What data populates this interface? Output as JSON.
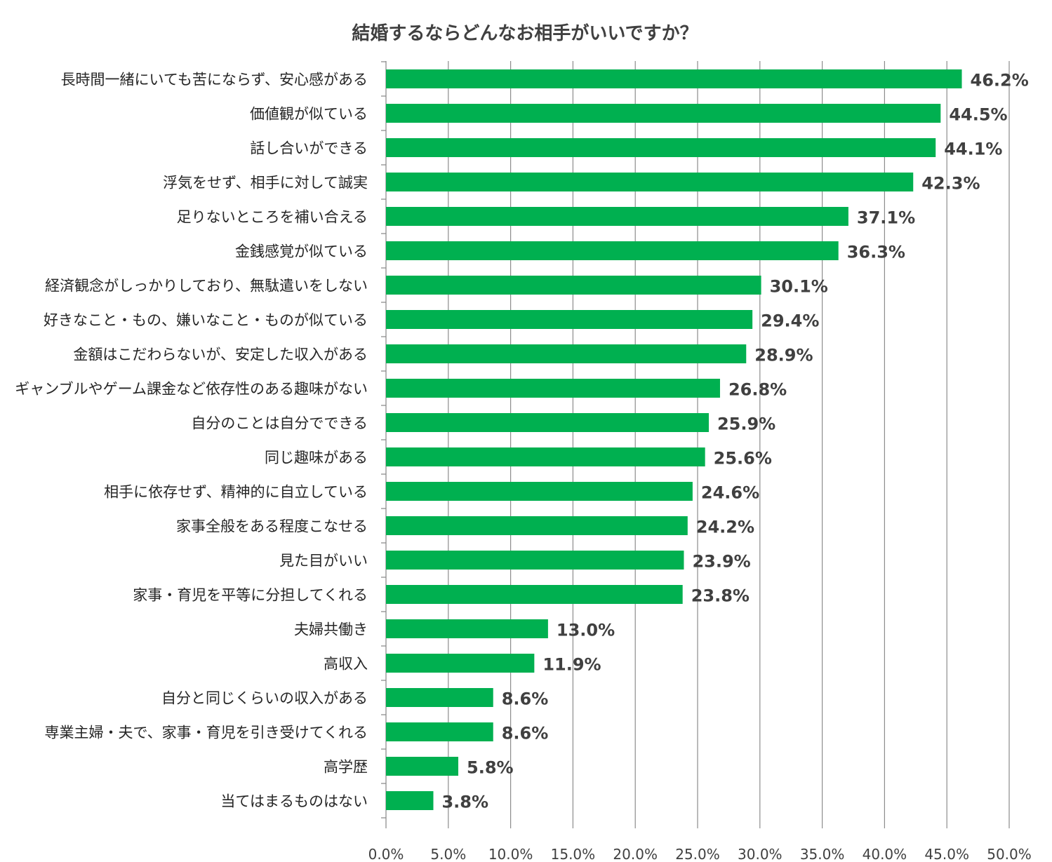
{
  "chart_data": {
    "type": "bar",
    "orientation": "horizontal",
    "title": "結婚するならどんなお相手がいいですか？",
    "xlabel": "",
    "ylabel": "",
    "xlim": [
      0,
      50
    ],
    "grid": true,
    "bar_color": "#00b050",
    "tick_labels": [
      "0.0%",
      "5.0%",
      "10.0%",
      "15.0%",
      "20.0%",
      "25.0%",
      "30.0%",
      "35.0%",
      "40.0%",
      "45.0%",
      "50.0%"
    ],
    "categories": [
      "長時間一緒にいても苦にならず、安心感がある",
      "価値観が似ている",
      "話し合いができる",
      "浮気をせず、相手に対して誠実",
      "足りないところを補い合える",
      "金銭感覚が似ている",
      "経済観念がしっかりしており、無駄遣いをしない",
      "好きなこと・もの、嫌いなこと・ものが似ている",
      "金額はこだわらないが、安定した収入がある",
      "ギャンブルやゲーム課金など依存性のある趣味がない",
      "自分のことは自分でできる",
      "同じ趣味がある",
      "相手に依存せず、精神的に自立している",
      "家事全般をある程度こなせる",
      "見た目がいい",
      "家事・育児を平等に分担してくれる",
      "夫婦共働き",
      "高収入",
      "自分と同じくらいの収入がある",
      "専業主婦・夫で、家事・育児を引き受けてくれる",
      "高学歴",
      "当てはまるものはない"
    ],
    "values": [
      46.2,
      44.5,
      44.1,
      42.3,
      37.1,
      36.3,
      30.1,
      29.4,
      28.9,
      26.8,
      25.9,
      25.6,
      24.6,
      24.2,
      23.9,
      23.8,
      13.0,
      11.9,
      8.6,
      8.6,
      5.8,
      3.8
    ],
    "value_labels": [
      "46.2%",
      "44.5%",
      "44.1%",
      "42.3%",
      "37.1%",
      "36.3%",
      "30.1%",
      "29.4%",
      "28.9%",
      "26.8%",
      "25.9%",
      "25.6%",
      "24.6%",
      "24.2%",
      "23.9%",
      "23.8%",
      "13.0%",
      "11.9%",
      "8.6%",
      "8.6%",
      "5.8%",
      "3.8%"
    ]
  }
}
